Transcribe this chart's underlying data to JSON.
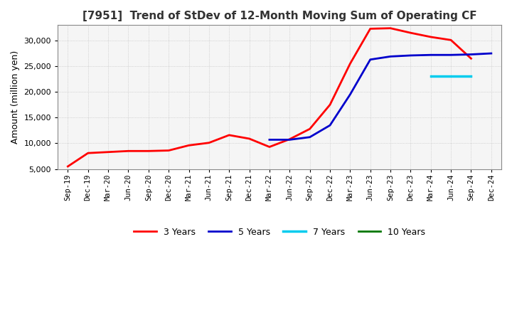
{
  "title": "[7951]  Trend of StDev of 12-Month Moving Sum of Operating CF",
  "ylabel": "Amount (million yen)",
  "ylim": [
    5000,
    33000
  ],
  "yticks": [
    5000,
    10000,
    15000,
    20000,
    25000,
    30000
  ],
  "background_color": "#ffffff",
  "plot_bg_color": "#f5f5f5",
  "grid_color": "#bbbbbb",
  "line_3y_color": "#ff0000",
  "line_5y_color": "#0000cc",
  "line_7y_color": "#00ccee",
  "line_10y_color": "#007700",
  "x_labels": [
    "Sep-19",
    "Dec-19",
    "Mar-20",
    "Jun-20",
    "Sep-20",
    "Dec-20",
    "Mar-21",
    "Jun-21",
    "Sep-21",
    "Dec-21",
    "Mar-22",
    "Jun-22",
    "Sep-22",
    "Dec-22",
    "Mar-23",
    "Jun-23",
    "Sep-23",
    "Dec-23",
    "Mar-24",
    "Jun-24",
    "Sep-24",
    "Dec-24"
  ],
  "data_3y": [
    5500,
    8100,
    8300,
    8500,
    8500,
    8600,
    9600,
    10100,
    11600,
    10900,
    9300,
    10800,
    12800,
    17500,
    25500,
    32300,
    32400,
    31500,
    30700,
    30100,
    26500,
    null
  ],
  "data_5y": [
    null,
    null,
    null,
    null,
    null,
    null,
    null,
    null,
    null,
    null,
    10700,
    10700,
    11200,
    13500,
    19500,
    26300,
    26900,
    27100,
    27200,
    27200,
    27300,
    27500
  ],
  "data_7y": [
    null,
    null,
    null,
    null,
    null,
    null,
    null,
    null,
    null,
    null,
    null,
    null,
    null,
    null,
    null,
    null,
    null,
    null,
    23100,
    23100,
    23100,
    null
  ],
  "data_10y": [
    null,
    null,
    null,
    null,
    null,
    null,
    null,
    null,
    null,
    null,
    null,
    null,
    null,
    null,
    null,
    null,
    null,
    null,
    null,
    null,
    null,
    null
  ],
  "legend_labels": [
    "3 Years",
    "5 Years",
    "7 Years",
    "10 Years"
  ]
}
